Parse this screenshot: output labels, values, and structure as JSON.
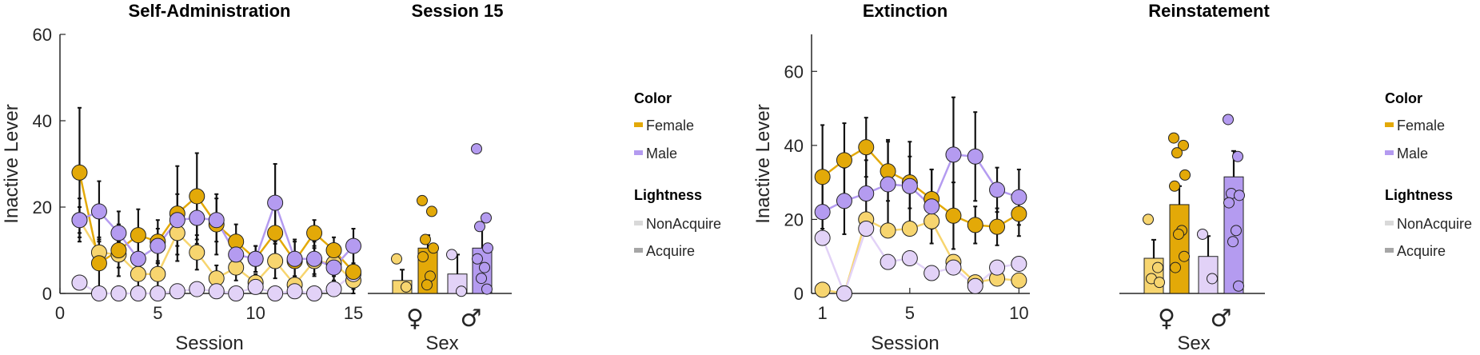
{
  "colors": {
    "female_dark": "#E3A908",
    "female_light": "#F7D56F",
    "male_dark": "#B49BF0",
    "male_light": "#E2D2F7",
    "axis": "#262626",
    "error": "#111111"
  },
  "chart_data": [
    {
      "panel": "self-administration",
      "type": "line",
      "title": "Self-Administration",
      "xlabel": "Session",
      "ylabel": "Inactive Lever",
      "xlim": [
        0,
        15
      ],
      "ylim": [
        0,
        60
      ],
      "xticks": [
        "0",
        "5",
        "10",
        "15"
      ],
      "yticks": [
        "0",
        "20",
        "40",
        "60"
      ],
      "x": [
        1,
        2,
        3,
        4,
        5,
        6,
        7,
        8,
        9,
        10,
        11,
        12,
        13,
        14,
        15
      ],
      "series": [
        {
          "sex": "Female",
          "group": "Acquire",
          "values": [
            28,
            7,
            10,
            13.5,
            12,
            18.5,
            22.5,
            16,
            12,
            8,
            14,
            7.5,
            14,
            10,
            5
          ],
          "err": [
            15,
            6,
            6,
            6,
            5,
            11,
            10,
            7,
            4,
            3,
            8,
            5,
            3,
            3,
            6
          ]
        },
        {
          "sex": "Female",
          "group": "NonAcquire",
          "values": [
            17,
            9.5,
            9,
            4.5,
            4.5,
            14,
            9.5,
            3.5,
            6,
            2.5,
            7.5,
            2,
            7.5,
            7,
            3
          ],
          "err": [
            3,
            3,
            3,
            3,
            3,
            5,
            4,
            3,
            3,
            2,
            4,
            2,
            3,
            3,
            2
          ]
        },
        {
          "sex": "Male",
          "group": "Acquire",
          "values": [
            17,
            19,
            14,
            8,
            11,
            17,
            17.5,
            17,
            9,
            8,
            21,
            8,
            8,
            6,
            11
          ],
          "err": [
            5,
            7,
            5,
            4,
            4,
            6,
            6,
            5,
            4,
            3,
            9,
            4,
            4,
            3,
            4
          ]
        },
        {
          "sex": "Male",
          "group": "NonAcquire",
          "values": [
            2.5,
            0,
            0,
            0,
            0,
            0.5,
            1,
            0.5,
            0,
            1.5,
            0,
            0.5,
            0,
            1,
            4.5
          ],
          "err": [
            0,
            0,
            0,
            0,
            0,
            0,
            0,
            0,
            0,
            0,
            0,
            0,
            0,
            0,
            0
          ]
        }
      ]
    },
    {
      "panel": "session-15",
      "type": "bar",
      "title": "Session 15",
      "xlabel": "Sex",
      "ylim": [
        0,
        60
      ],
      "categories": [
        "♀",
        "♂"
      ],
      "bars": [
        {
          "sex": "Female",
          "group": "NonAcquire",
          "value": 3,
          "err": 2.5,
          "points": [
            8,
            1.5
          ]
        },
        {
          "sex": "Female",
          "group": "Acquire",
          "value": 10.5,
          "err": 3,
          "points": [
            21.5,
            19,
            12.5,
            10.5,
            8.5,
            4,
            2
          ]
        },
        {
          "sex": "Male",
          "group": "NonAcquire",
          "value": 4.5,
          "err": 4.5,
          "points": [
            9,
            0.5
          ]
        },
        {
          "sex": "Male",
          "group": "Acquire",
          "value": 10.5,
          "err": 5,
          "points": [
            33.5,
            17.5,
            15.5,
            10.5,
            8,
            6,
            3.5,
            1
          ]
        }
      ]
    },
    {
      "panel": "extinction",
      "type": "line",
      "title": "Extinction",
      "xlabel": "Session",
      "ylabel": "Inactive Lever",
      "xlim": [
        0.5,
        10.5
      ],
      "ylim": [
        0,
        70
      ],
      "xticks": [
        "1",
        "5",
        "10"
      ],
      "yticks": [
        "0",
        "20",
        "40",
        "60"
      ],
      "x": [
        1,
        2,
        3,
        4,
        5,
        6,
        7,
        8,
        9,
        10
      ],
      "series": [
        {
          "sex": "Female",
          "group": "Acquire",
          "values": [
            31.5,
            36,
            39.5,
            33,
            30,
            25.5,
            21,
            18.5,
            18,
            21.5
          ],
          "err": [
            14,
            10,
            8,
            8,
            7,
            8,
            9,
            5,
            5,
            6
          ]
        },
        {
          "sex": "Female",
          "group": "NonAcquire",
          "values": [
            1,
            0,
            20,
            17,
            17.5,
            19.5,
            8.5,
            3,
            4,
            3.5
          ],
          "err": [
            0,
            0,
            0,
            0,
            0,
            0,
            0,
            0,
            0,
            0
          ]
        },
        {
          "sex": "Male",
          "group": "Acquire",
          "values": [
            22,
            25,
            27,
            29.5,
            29,
            23.5,
            37.5,
            37,
            28,
            26
          ],
          "err": [
            8,
            9,
            9,
            12,
            12,
            10,
            15.5,
            12,
            6,
            7.5
          ]
        },
        {
          "sex": "Male",
          "group": "NonAcquire",
          "values": [
            15,
            0,
            17.5,
            8.5,
            9.5,
            5.5,
            7,
            2,
            7,
            8
          ],
          "err": [
            0,
            0,
            0,
            0,
            0,
            0,
            0,
            0,
            0,
            0
          ]
        }
      ]
    },
    {
      "panel": "reinstatement",
      "type": "bar",
      "title": "Reinstatement",
      "xlabel": "Sex",
      "ylim": [
        0,
        70
      ],
      "categories": [
        "♀",
        "♂"
      ],
      "bars": [
        {
          "sex": "Female",
          "group": "NonAcquire",
          "value": 9.5,
          "err": 5,
          "points": [
            20,
            7,
            4,
            3
          ]
        },
        {
          "sex": "Female",
          "group": "Acquire",
          "value": 24,
          "err": 5,
          "points": [
            42,
            40,
            38,
            32,
            29,
            17,
            16,
            10,
            7
          ]
        },
        {
          "sex": "Male",
          "group": "NonAcquire",
          "value": 10,
          "err": 5.5,
          "points": [
            16,
            4
          ]
        },
        {
          "sex": "Male",
          "group": "Acquire",
          "value": 31.5,
          "err": 7,
          "points": [
            47,
            37,
            27,
            26.5,
            24.5,
            17,
            14,
            2
          ]
        }
      ]
    }
  ],
  "legends": [
    {
      "color_title": "Color",
      "female": "Female",
      "male": "Male",
      "lightness_title": "Lightness",
      "nonacquire": "NonAcquire",
      "acquire": "Acquire"
    },
    {
      "color_title": "Color",
      "female": "Female",
      "male": "Male",
      "lightness_title": "Lightness",
      "nonacquire": "NonAcquire",
      "acquire": "Acquire"
    }
  ]
}
